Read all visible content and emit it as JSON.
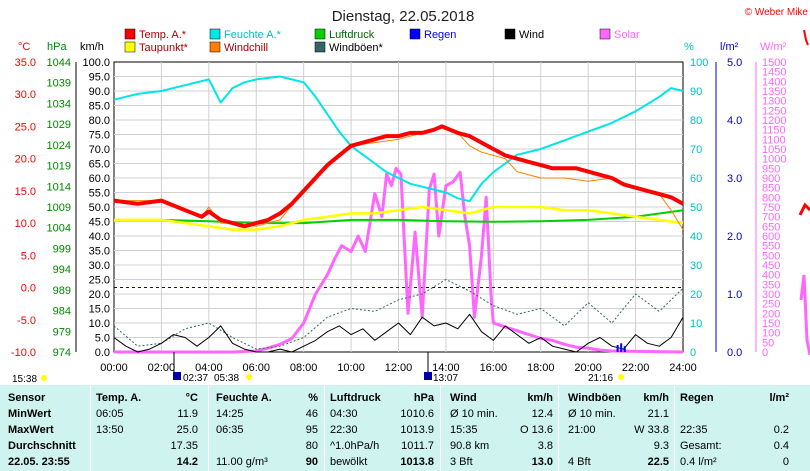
{
  "title": "Dienstag, 22.05.2018",
  "copyright": "© Weber Mike",
  "legend": [
    {
      "label": "Temp. A.*",
      "color": "#ff0000"
    },
    {
      "label": "Feuchte A.*",
      "color": "#00e5e5"
    },
    {
      "label": "Luftdruck",
      "color": "#00d000"
    },
    {
      "label": "Regen",
      "color": "#0000ff"
    },
    {
      "label": "Wind",
      "color": "#000000"
    },
    {
      "label": "Solar",
      "color": "#ff66ff"
    },
    {
      "label": "Taupunkt*",
      "color": "#ffff00"
    },
    {
      "label": "Windchill",
      "color": "#ff8000"
    },
    {
      "label": "Windböen*",
      "color": "#336666"
    }
  ],
  "axis_units": {
    "temp": "°C",
    "pressure": "hPa",
    "wind": "km/h",
    "humidity": "%",
    "rain": "l/m²",
    "solar": "W/m²"
  },
  "chart_data": {
    "type": "line",
    "x_ticks": [
      "00:00",
      "02:00",
      "04:00",
      "06:00",
      "08:00",
      "10:00",
      "12:00",
      "14:00",
      "16:00",
      "18:00",
      "20:00",
      "22:00",
      "24:00"
    ],
    "temp_axis": {
      "min": -10,
      "max": 35,
      "step": 5,
      "labels": [
        "35.0",
        "30.0",
        "25.0",
        "20.0",
        "15.0",
        "10.0",
        "5.0",
        "0.0",
        "-5.0",
        "-10.0"
      ]
    },
    "pressure_axis": {
      "labels": [
        "1044",
        "1039",
        "1034",
        "1029",
        "1024",
        "1019",
        "1014",
        "1009",
        "1004",
        "999",
        "994",
        "989",
        "984",
        "979",
        "974"
      ]
    },
    "wind_axis": {
      "labels": [
        "100.0",
        "95.0",
        "90.0",
        "85.0",
        "80.0",
        "75.0",
        "70.0",
        "65.0",
        "60.0",
        "55.0",
        "50.0",
        "45.0",
        "40.0",
        "35.0",
        "30.0",
        "25.0",
        "20.0",
        "15.0",
        "10.0",
        "5.0",
        "0.0"
      ]
    },
    "humidity_axis": {
      "labels": [
        "100",
        "90",
        "80",
        "70",
        "60",
        "50",
        "40",
        "30",
        "20",
        "10",
        "0"
      ]
    },
    "rain_axis": {
      "labels": [
        "5.0",
        "4.0",
        "3.0",
        "2.0",
        "1.0",
        "0.0"
      ]
    },
    "solar_axis": {
      "labels": [
        "1500",
        "1450",
        "1400",
        "1350",
        "1300",
        "1250",
        "1200",
        "1150",
        "1100",
        "1050",
        "1000",
        "950",
        "900",
        "850",
        "800",
        "750",
        "700",
        "650",
        "600",
        "550",
        "500",
        "450",
        "400",
        "350",
        "300",
        "250",
        "200",
        "150",
        "100",
        "50",
        "0"
      ]
    },
    "series": [
      {
        "name": "Temp. A.*",
        "axis": "temp",
        "x": [
          0,
          1,
          2,
          3,
          3.7,
          4,
          4.5,
          5,
          5.5,
          6,
          6.5,
          7,
          7.5,
          8,
          8.5,
          9,
          9.5,
          10,
          10.5,
          11,
          11.5,
          12,
          12.5,
          13,
          13.5,
          13.83,
          14.5,
          15,
          15.5,
          16,
          16.5,
          17,
          17.5,
          18,
          18.5,
          19,
          19.5,
          20,
          20.5,
          21,
          21.5,
          22,
          22.5,
          23,
          23.5,
          24
        ],
        "y": [
          13.5,
          13,
          13.5,
          12,
          11,
          11.8,
          10.5,
          10,
          9.5,
          10,
          10.5,
          11.5,
          13,
          15,
          17,
          19,
          20.5,
          22,
          22.5,
          23,
          23.5,
          23.5,
          24,
          24,
          24.5,
          25,
          24,
          23.5,
          22.5,
          21.5,
          20.5,
          20,
          19.5,
          19,
          18.5,
          18.5,
          18.5,
          18,
          17.5,
          17,
          16,
          15.5,
          15,
          14.5,
          14,
          13
        ]
      },
      {
        "name": "Taupunkt*",
        "axis": "temp",
        "x": [
          0,
          2,
          4,
          5,
          6,
          7,
          8,
          9,
          10,
          11,
          12,
          13,
          14,
          15,
          16,
          17,
          18,
          19,
          20,
          21,
          22,
          23,
          24
        ],
        "y": [
          10.5,
          10.5,
          9.5,
          9,
          9,
          9.5,
          10.5,
          11,
          11.5,
          11.5,
          12,
          12.5,
          12,
          11.5,
          12.5,
          12.5,
          12.5,
          12,
          12,
          11.5,
          11,
          10.5,
          10
        ]
      },
      {
        "name": "Windchill",
        "axis": "temp",
        "x": [
          0,
          2,
          3.7,
          4,
          4.5,
          5,
          6,
          7,
          8,
          9,
          10,
          11,
          12,
          13,
          13.83,
          14.5,
          15,
          15.5,
          16,
          16.5,
          17,
          18,
          19,
          20,
          21,
          22,
          23,
          23.5,
          24
        ],
        "y": [
          13.5,
          13.5,
          11,
          12.5,
          10,
          10,
          9.5,
          10.5,
          15,
          19,
          22,
          22.5,
          23,
          24,
          25,
          24,
          22,
          21,
          20.5,
          20,
          18,
          17,
          17,
          16.5,
          17,
          15.5,
          14.5,
          12,
          9
        ]
      },
      {
        "name": "Feuchte A.*",
        "axis": "humidity",
        "x": [
          0,
          1,
          2,
          3,
          4,
          4.5,
          5,
          5.5,
          6,
          7,
          7.5,
          8,
          8.5,
          9,
          9.5,
          10,
          11,
          11.5,
          12,
          12.5,
          13,
          13.5,
          14,
          14.5,
          15,
          15.5,
          16,
          16.5,
          17,
          18,
          19,
          20,
          21,
          22,
          23,
          23.5,
          24
        ],
        "y": [
          87,
          89,
          90,
          92,
          94,
          86,
          91,
          93,
          94,
          95,
          94,
          93,
          88,
          82,
          76,
          71,
          65,
          62,
          60,
          58,
          57,
          56,
          55,
          53,
          52,
          58,
          62,
          65,
          68,
          70,
          73,
          76,
          79,
          83,
          88,
          91,
          90
        ]
      },
      {
        "name": "Luftdruck",
        "axis": "temp",
        "x": [
          0,
          2,
          4,
          6,
          8,
          10,
          12,
          14,
          16,
          18,
          20,
          22,
          24
        ],
        "y": [
          10.5,
          10.5,
          10.3,
          10,
          10,
          10.5,
          10.5,
          10.3,
          10.2,
          10.3,
          10.5,
          11,
          12
        ]
      },
      {
        "name": "Wind",
        "axis": "wind",
        "x": [
          0,
          0.5,
          1,
          1.5,
          2,
          2.5,
          3,
          3.5,
          4,
          4.5,
          5,
          5.5,
          6,
          6.5,
          7,
          7.5,
          8,
          8.5,
          9,
          9.5,
          10,
          10.5,
          11,
          11.5,
          12,
          12.5,
          13,
          13.5,
          14,
          14.5,
          15,
          15.5,
          16,
          16.5,
          17,
          17.5,
          18,
          18.5,
          19,
          19.5,
          20,
          20.5,
          21,
          21.5,
          22,
          22.5,
          23,
          23.5,
          24
        ],
        "y": [
          5,
          2,
          0,
          1,
          3,
          6,
          5,
          2,
          5,
          9,
          3,
          1,
          0,
          0,
          1,
          0,
          2,
          4,
          7,
          9,
          6,
          8,
          4,
          7,
          10,
          6,
          12,
          9,
          10,
          8,
          13,
          7,
          4,
          9,
          6,
          3,
          5,
          2,
          1,
          0,
          3,
          5,
          2,
          1,
          6,
          3,
          2,
          5,
          12
        ]
      },
      {
        "name": "Windböen*",
        "axis": "wind",
        "x": [
          0,
          1,
          2,
          3,
          4,
          5,
          6,
          7,
          8,
          9,
          10,
          11,
          12,
          13,
          14,
          15,
          16,
          17,
          18,
          19,
          20,
          21,
          22,
          23,
          24
        ],
        "y": [
          9,
          2,
          3,
          8,
          10,
          5,
          1,
          2,
          5,
          12,
          15,
          14,
          18,
          20,
          25,
          21,
          16,
          13,
          15,
          9,
          17,
          10,
          20,
          14,
          22
        ]
      },
      {
        "name": "Solar",
        "axis": "solar",
        "x": [
          0,
          5,
          6,
          6.5,
          7,
          7.5,
          8,
          8.5,
          9,
          9.3,
          9.6,
          10,
          10.3,
          10.6,
          11,
          11.3,
          11.5,
          11.7,
          11.9,
          12.1,
          12.4,
          12.7,
          13,
          13.3,
          13.5,
          13.7,
          14,
          14.3,
          14.6,
          14.8,
          15,
          15.2,
          15.5,
          15.7,
          15.9,
          16,
          16.5,
          17,
          17.5,
          18,
          18.5,
          19,
          19.5,
          20,
          20.5,
          21,
          24
        ],
        "y": [
          0,
          0,
          5,
          20,
          40,
          70,
          150,
          300,
          400,
          480,
          550,
          520,
          600,
          520,
          820,
          700,
          920,
          860,
          950,
          920,
          200,
          620,
          180,
          840,
          920,
          600,
          860,
          880,
          930,
          700,
          550,
          180,
          500,
          800,
          300,
          150,
          130,
          110,
          90,
          70,
          60,
          40,
          25,
          20,
          10,
          5,
          0
        ]
      }
    ]
  },
  "markers": [
    {
      "label": "15:38"
    },
    {
      "label": "02:37"
    },
    {
      "label": "05:38"
    },
    {
      "label": "13:07"
    },
    {
      "label": "21:16"
    }
  ],
  "table": {
    "headers": [
      "Sensor",
      "Temp. A.",
      "°C",
      "Feuchte A.",
      "%",
      "Luftdruck",
      "hPa",
      "Wind",
      "km/h",
      "Windböen",
      "km/h",
      "Regen",
      "l/m²"
    ],
    "rows": [
      [
        "MinWert",
        "06:05",
        "11.9",
        "14:25",
        "46",
        "04:30",
        "1010.6",
        "Ø 10 min.",
        "12.4",
        "Ø 10 min.",
        "21.1",
        "",
        ""
      ],
      [
        "MaxWert",
        "13:50",
        "25.0",
        "06:35",
        "95",
        "22:30",
        "1013.9",
        "15:35",
        "O 13.6",
        "21:00",
        "W 33.8",
        "22:35",
        "0.2"
      ],
      [
        "Durchschnitt",
        "",
        "17.35",
        "",
        "80",
        "^1.0hPa/h",
        "1011.7",
        "90.8 km",
        "3.8",
        "",
        "9.3",
        "Gesamt:",
        "0.4"
      ],
      [
        "22.05. 23:55",
        "",
        "14.2",
        "11.00 g/m³",
        "90",
        "bewölkt",
        "1013.8",
        "3 Bft",
        "13.0",
        "4 Bft",
        "22.5",
        "0.4 l/m²",
        "0"
      ]
    ]
  }
}
